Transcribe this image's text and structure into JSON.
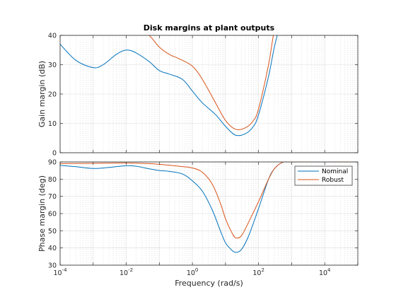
{
  "chart_data": [
    {
      "type": "line",
      "title": "Disk margins at plant outputs",
      "xlabel": "",
      "ylabel": "Gain margin (dB)",
      "xscale": "log",
      "xlim": [
        0.0001,
        100000
      ],
      "ylim": [
        0,
        40
      ],
      "yticks": [
        0,
        10,
        20,
        30,
        40
      ],
      "grid": true,
      "series": [
        {
          "name": "Nominal",
          "color": "#0072bd",
          "x": [
            0.0001,
            0.0003,
            0.001,
            0.002,
            0.005,
            0.01,
            0.02,
            0.05,
            0.1,
            0.2,
            0.5,
            1,
            2,
            5,
            10,
            20,
            40,
            70,
            100,
            200,
            300,
            500
          ],
          "y": [
            37,
            31.5,
            29,
            30,
            33.5,
            35,
            34,
            31,
            28,
            26.8,
            25,
            21,
            17,
            13,
            9,
            6,
            6.5,
            9,
            13,
            26,
            36,
            46
          ]
        },
        {
          "name": "Robust",
          "color": "#d95319",
          "x": [
            0.04,
            0.06,
            0.1,
            0.2,
            0.4,
            1,
            2,
            5,
            10,
            20,
            40,
            70,
            100,
            200,
            280,
            400
          ],
          "y": [
            41,
            39,
            36,
            33.5,
            32,
            29.5,
            25,
            17,
            11,
            8,
            8.5,
            11,
            15,
            30,
            40,
            48
          ]
        }
      ]
    },
    {
      "type": "line",
      "title": "",
      "xlabel": "Frequency (rad/s)",
      "ylabel": "Phase margin (deg)",
      "xscale": "log",
      "xlim": [
        0.0001,
        100000
      ],
      "ylim": [
        30,
        90
      ],
      "yticks": [
        30,
        40,
        50,
        60,
        70,
        80,
        90
      ],
      "xticks": [
        0.0001,
        0.01,
        1,
        100,
        10000
      ],
      "xtick_labels": [
        {
          "base": "10",
          "exp": "-4"
        },
        {
          "base": "10",
          "exp": "-2"
        },
        {
          "base": "10",
          "exp": "0"
        },
        {
          "base": "10",
          "exp": "2"
        },
        {
          "base": "10",
          "exp": "4"
        }
      ],
      "grid": true,
      "legend": "top-right",
      "series": [
        {
          "name": "Nominal",
          "color": "#0072bd",
          "x": [
            0.0001,
            0.0003,
            0.001,
            0.003,
            0.01,
            0.02,
            0.05,
            0.1,
            0.2,
            0.5,
            1,
            2,
            4,
            7,
            10,
            15,
            20,
            30,
            50,
            100,
            200,
            300,
            500,
            1000,
            100000
          ],
          "y": [
            88,
            87.2,
            86.2,
            86.8,
            87.8,
            87.5,
            86,
            85,
            84.5,
            83,
            79,
            73,
            62,
            50,
            43,
            39,
            37.5,
            39,
            47,
            63,
            80,
            86,
            89.5,
            90,
            90
          ]
        },
        {
          "name": "Robust",
          "color": "#d95319",
          "x": [
            0.0001,
            0.001,
            0.01,
            0.05,
            0.1,
            0.5,
            1,
            2,
            4,
            7,
            10,
            15,
            20,
            30,
            50,
            100,
            200,
            300,
            500,
            1000,
            100000
          ],
          "y": [
            89,
            89.2,
            89.4,
            89,
            88.6,
            87.3,
            86.5,
            84,
            77,
            66,
            57,
            49.5,
            46,
            47,
            55,
            67,
            80,
            86,
            89.5,
            90,
            90
          ]
        }
      ]
    }
  ]
}
